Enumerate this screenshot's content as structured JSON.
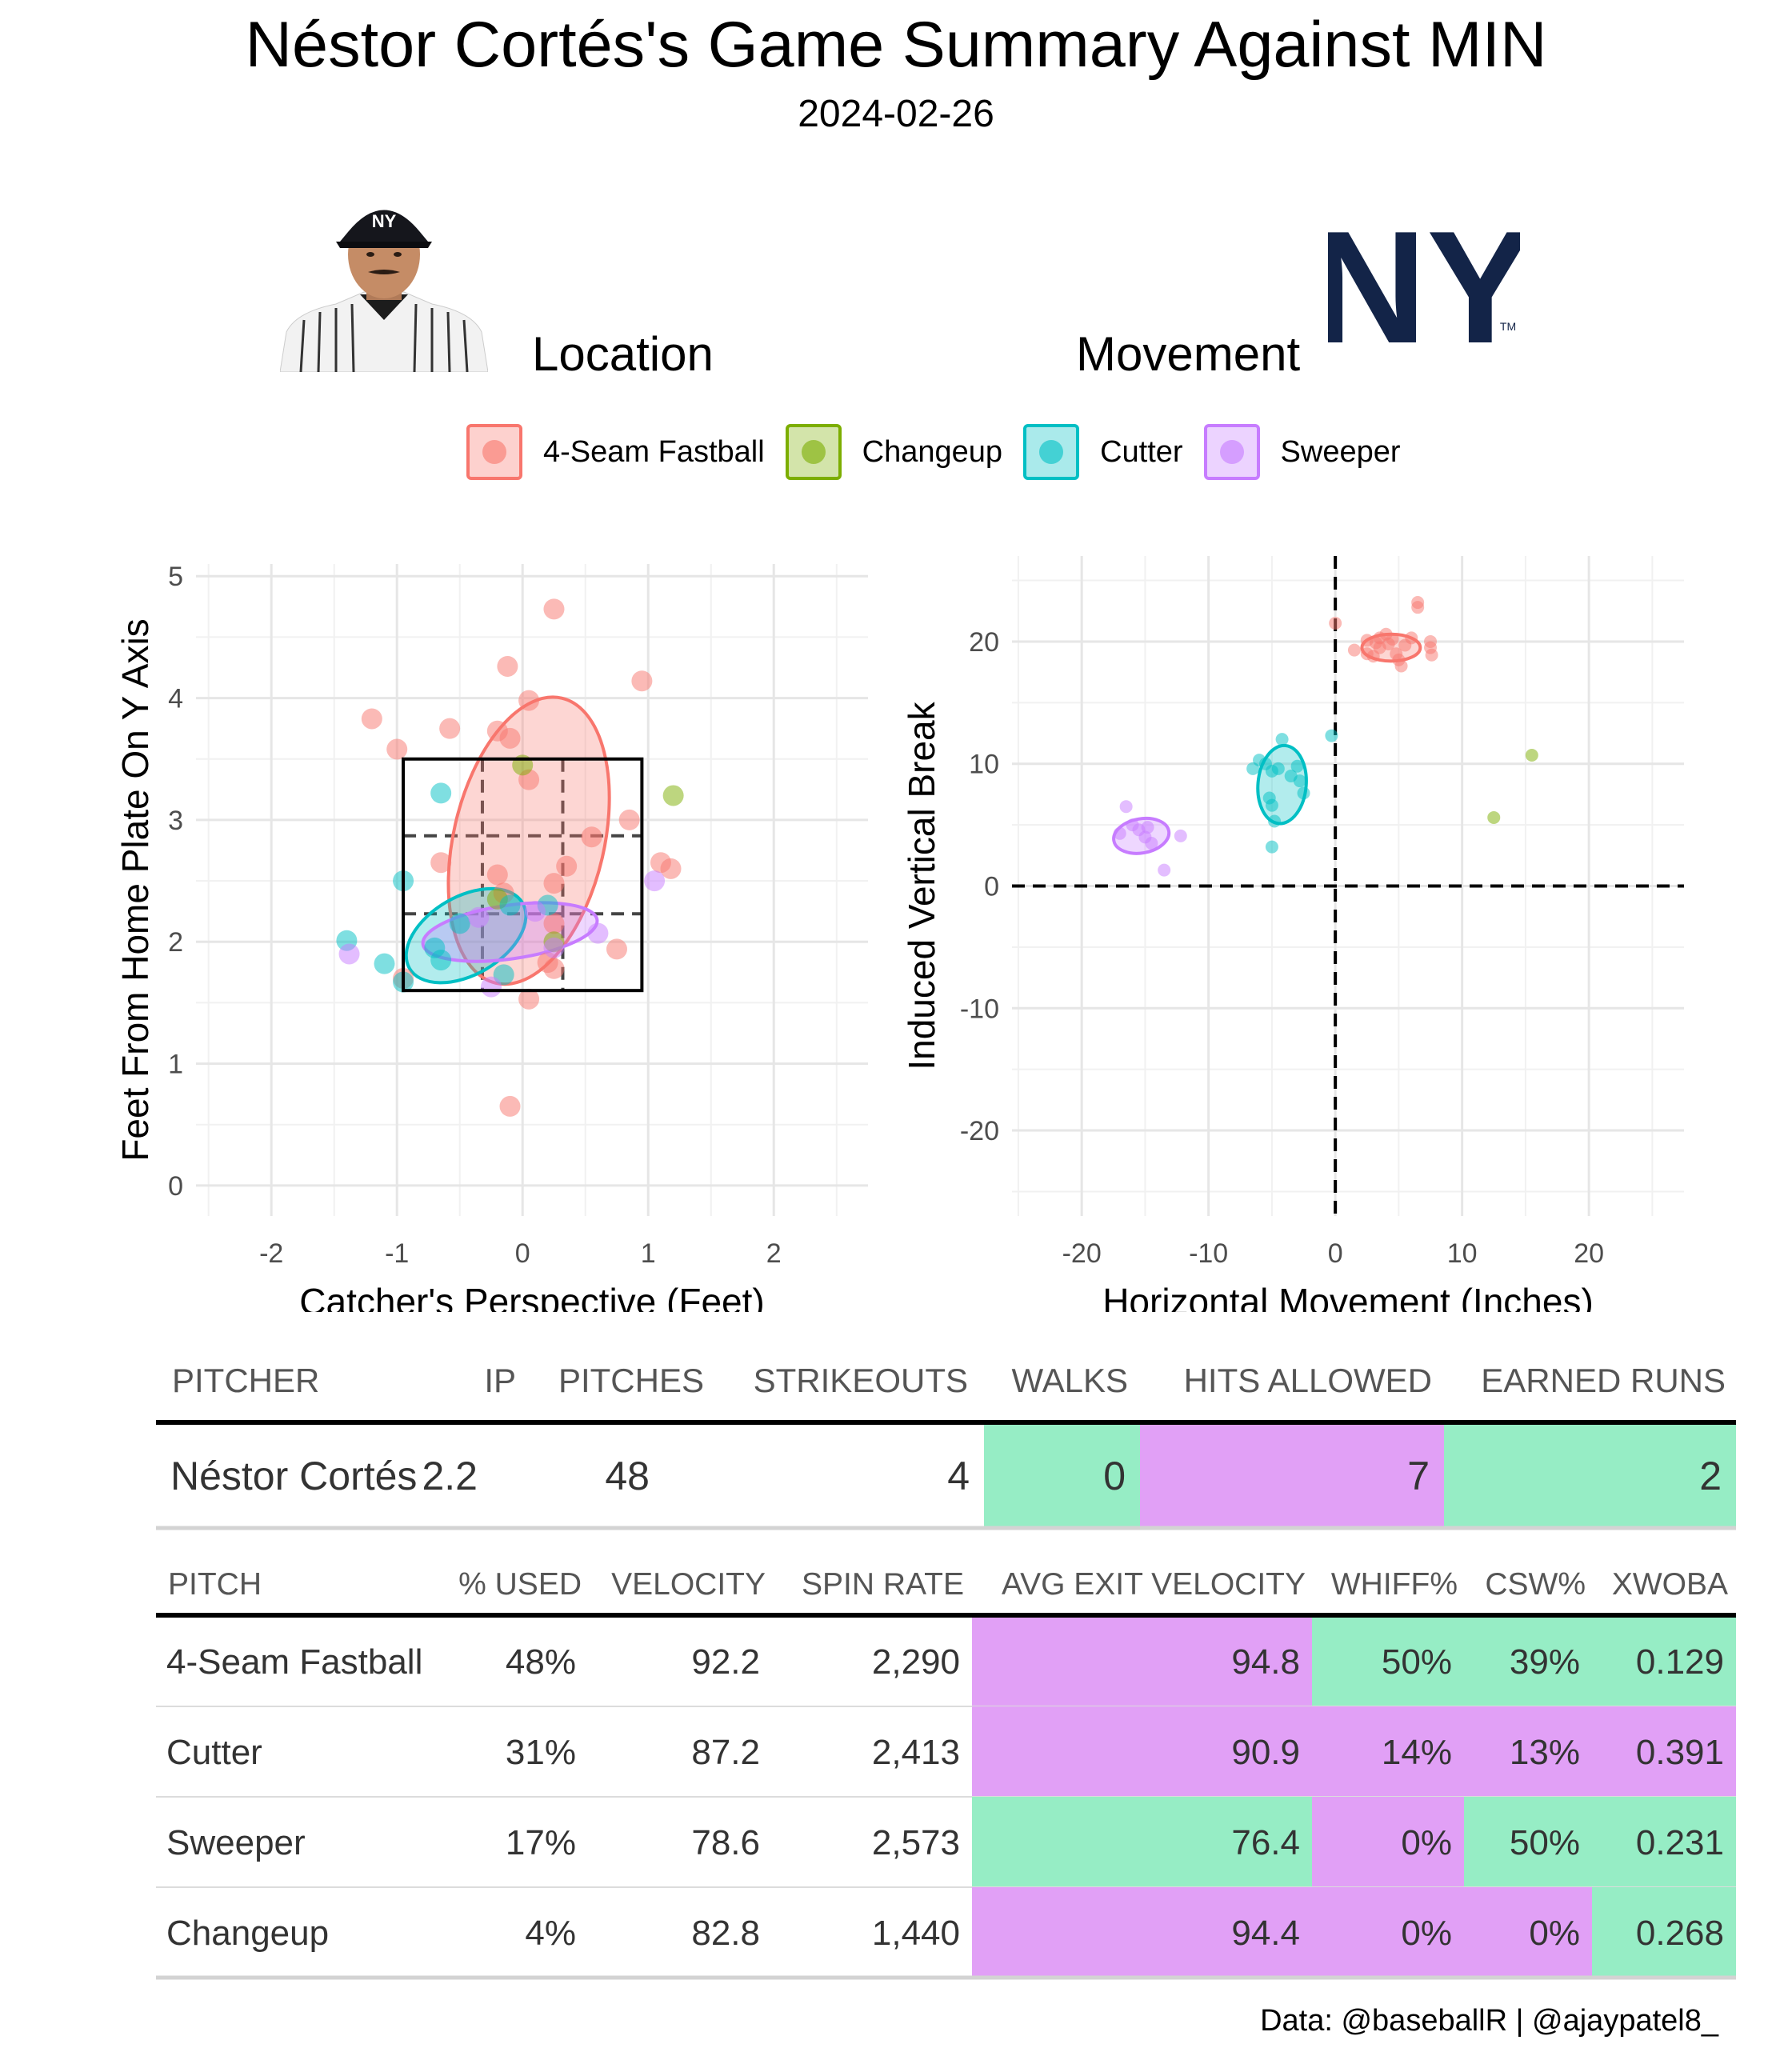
{
  "title": "Néstor Cortés's Game Summary Against MIN",
  "date": "2024-02-26",
  "panels": {
    "location": "Location",
    "movement": "Movement"
  },
  "legend": [
    {
      "label": "4-Seam Fastball",
      "color": "#F8766D"
    },
    {
      "label": "Changeup",
      "color": "#7CAE00"
    },
    {
      "label": "Cutter",
      "color": "#00BFC4"
    },
    {
      "label": "Sweeper",
      "color": "#C77CFF"
    }
  ],
  "images": {
    "player": "player-headshot-icon",
    "team": "yankees-ny-logo",
    "team_logo_text": "NY",
    "trademark": "TM"
  },
  "chart_data": [
    {
      "type": "scatter",
      "name": "location",
      "xlabel": "Catcher's Perspective (Feet)",
      "ylabel": "Feet From Home Plate On Y Axis",
      "xlim": [
        -2.6,
        2.75
      ],
      "ylim": [
        -0.25,
        5.1
      ],
      "x_ticks": [
        -2,
        -1,
        0,
        1,
        2
      ],
      "y_ticks": [
        0,
        1,
        2,
        3,
        4,
        5
      ],
      "grid": true,
      "strike_zone": {
        "x": [
          -0.95,
          0.95
        ],
        "y": [
          1.6,
          3.5
        ],
        "x_inner": [
          -0.32,
          0.32
        ],
        "y_inner": [
          2.23,
          2.87
        ]
      },
      "series": [
        {
          "name": "4-Seam Fastball",
          "color": "#F8766D",
          "points": [
            [
              0.25,
              4.73
            ],
            [
              -0.12,
              4.26
            ],
            [
              0.05,
              3.98
            ],
            [
              0.95,
              4.14
            ],
            [
              -1.2,
              3.83
            ],
            [
              -0.58,
              3.75
            ],
            [
              -0.1,
              3.67
            ],
            [
              -0.2,
              3.73
            ],
            [
              -1.0,
              3.58
            ],
            [
              0.05,
              3.33
            ],
            [
              0.85,
              3.0
            ],
            [
              0.55,
              2.86
            ],
            [
              0.35,
              2.62
            ],
            [
              1.1,
              2.65
            ],
            [
              1.18,
              2.6
            ],
            [
              -0.65,
              2.65
            ],
            [
              -0.2,
              2.55
            ],
            [
              0.25,
              2.48
            ],
            [
              -0.15,
              2.4
            ],
            [
              0.25,
              2.15
            ],
            [
              0.2,
              1.83
            ],
            [
              0.75,
              1.94
            ],
            [
              0.25,
              1.78
            ],
            [
              0.05,
              1.53
            ],
            [
              -0.95,
              1.7
            ],
            [
              -0.1,
              0.65
            ]
          ],
          "ellipse": {
            "cx": 0.05,
            "cy": 2.83,
            "rx": 0.6,
            "ry": 1.2,
            "angle": 13
          }
        },
        {
          "name": "Changeup",
          "color": "#7CAE00",
          "points": [
            [
              1.2,
              3.2
            ],
            [
              0.25,
              2.0
            ],
            [
              -0.2,
              2.35
            ],
            [
              0.0,
              3.45
            ]
          ]
        },
        {
          "name": "Cutter",
          "color": "#00BFC4",
          "points": [
            [
              -0.65,
              3.22
            ],
            [
              -0.95,
              2.5
            ],
            [
              -1.4,
              2.01
            ],
            [
              -1.1,
              1.82
            ],
            [
              -0.95,
              1.67
            ],
            [
              -0.65,
              1.85
            ],
            [
              -0.7,
              1.95
            ],
            [
              -0.5,
              2.15
            ],
            [
              -0.15,
              1.73
            ],
            [
              -0.1,
              2.3
            ],
            [
              0.2,
              2.3
            ]
          ],
          "ellipse": {
            "cx": -0.45,
            "cy": 2.05,
            "rx": 0.52,
            "ry": 0.32,
            "angle": -30
          }
        },
        {
          "name": "Sweeper",
          "color": "#C77CFF",
          "points": [
            [
              -1.38,
              1.9
            ],
            [
              -0.25,
              1.63
            ],
            [
              0.25,
              1.95
            ],
            [
              0.6,
              2.07
            ],
            [
              1.05,
              2.5
            ],
            [
              -0.35,
              2.2
            ],
            [
              0.1,
              2.25
            ]
          ],
          "ellipse": {
            "cx": -0.1,
            "cy": 2.08,
            "rx": 0.7,
            "ry": 0.22,
            "angle": -8
          }
        }
      ]
    },
    {
      "type": "scatter",
      "name": "movement",
      "xlabel": "Horizontal Movement (Inches)",
      "ylabel": "Induced Vertical Break",
      "xlim": [
        -25.5,
        27.5
      ],
      "ylim": [
        -27,
        27
      ],
      "x_ticks": [
        -20,
        -10,
        0,
        10,
        20
      ],
      "y_ticks": [
        -20,
        -10,
        0,
        10,
        20
      ],
      "grid": true,
      "reference_lines": {
        "x": 0,
        "y": 0
      },
      "series": [
        {
          "name": "4-Seam Fastball",
          "color": "#F8766D",
          "points": [
            [
              0.0,
              21.5
            ],
            [
              6.5,
              23.2
            ],
            [
              6.5,
              22.8
            ],
            [
              1.5,
              19.3
            ],
            [
              2.5,
              20.1
            ],
            [
              2.5,
              19.0
            ],
            [
              3.0,
              18.8
            ],
            [
              3.5,
              20.3
            ],
            [
              3.5,
              19.5
            ],
            [
              4.0,
              20.6
            ],
            [
              4.2,
              19.8
            ],
            [
              4.8,
              19.0
            ],
            [
              5.0,
              18.5
            ],
            [
              5.2,
              18.0
            ],
            [
              5.5,
              19.7
            ],
            [
              6.0,
              20.3
            ],
            [
              7.5,
              20.0
            ],
            [
              7.5,
              19.5
            ],
            [
              7.6,
              18.9
            ],
            [
              4.5,
              20.2
            ],
            [
              3.2,
              19.9
            ]
          ],
          "ellipse": {
            "cx": 4.4,
            "cy": 19.5,
            "rx": 2.3,
            "ry": 1.1,
            "angle": 0
          }
        },
        {
          "name": "Changeup",
          "color": "#7CAE00",
          "points": [
            [
              15.5,
              10.7
            ],
            [
              12.5,
              5.6
            ]
          ]
        },
        {
          "name": "Cutter",
          "color": "#00BFC4",
          "points": [
            [
              -0.3,
              12.3
            ],
            [
              -4.2,
              12.0
            ],
            [
              -6.5,
              9.6
            ],
            [
              -6.0,
              10.3
            ],
            [
              -5.5,
              10.0
            ],
            [
              -5.0,
              9.4
            ],
            [
              -4.5,
              9.6
            ],
            [
              -3.0,
              9.8
            ],
            [
              -2.8,
              8.6
            ],
            [
              -2.5,
              7.6
            ],
            [
              -5.2,
              7.2
            ],
            [
              -5.0,
              6.6
            ],
            [
              -4.8,
              5.3
            ],
            [
              -5.0,
              3.2
            ],
            [
              -3.5,
              9.0
            ]
          ],
          "ellipse": {
            "cx": -4.2,
            "cy": 8.3,
            "rx": 1.9,
            "ry": 3.2,
            "angle": 5
          }
        },
        {
          "name": "Sweeper",
          "color": "#C77CFF",
          "points": [
            [
              -16.5,
              6.5
            ],
            [
              -16.0,
              5.0
            ],
            [
              -17.0,
              4.3
            ],
            [
              -15.5,
              4.6
            ],
            [
              -15.0,
              4.0
            ],
            [
              -14.5,
              3.5
            ],
            [
              -13.5,
              1.3
            ],
            [
              -12.2,
              4.1
            ],
            [
              -14.8,
              4.8
            ]
          ],
          "ellipse": {
            "cx": -15.3,
            "cy": 4.1,
            "rx": 2.2,
            "ry": 1.4,
            "angle": -10
          }
        }
      ]
    }
  ],
  "summary_table": {
    "headers": [
      "PITCHER",
      "IP",
      "PITCHES",
      "STRIKEOUTS",
      "WALKS",
      "HITS ALLOWED",
      "EARNED RUNS"
    ],
    "row": [
      "Néstor Cortés",
      "2.2",
      "48",
      "4",
      "0",
      "7",
      "2"
    ],
    "cell_colors": [
      null,
      null,
      null,
      null,
      "#96EDC5",
      "#E1A0F6",
      "#96EDC5"
    ]
  },
  "pitch_table": {
    "headers": [
      "PITCH",
      "% USED",
      "VELOCITY",
      "SPIN RATE",
      "AVG EXIT VELOCITY",
      "WHIFF%",
      "CSW%",
      "XWOBA"
    ],
    "rows": [
      [
        "4-Seam Fastball",
        "48%",
        "92.2",
        "2,290",
        "94.8",
        "50%",
        "39%",
        "0.129"
      ],
      [
        "Cutter",
        "31%",
        "87.2",
        "2,413",
        "90.9",
        "14%",
        "13%",
        "0.391"
      ],
      [
        "Sweeper",
        "17%",
        "78.6",
        "2,573",
        "76.4",
        "0%",
        "50%",
        "0.231"
      ],
      [
        "Changeup",
        "4%",
        "82.8",
        "1,440",
        "94.4",
        "0%",
        "0%",
        "0.268"
      ]
    ],
    "cell_colors": [
      [
        null,
        null,
        null,
        null,
        "#E1A0F6",
        "#96EDC5",
        "#96EDC5",
        "#96EDC5"
      ],
      [
        null,
        null,
        null,
        null,
        "#E1A0F6",
        "#E1A0F6",
        "#E1A0F6",
        "#E1A0F6"
      ],
      [
        null,
        null,
        null,
        null,
        "#96EDC5",
        "#E1A0F6",
        "#96EDC5",
        "#96EDC5"
      ],
      [
        null,
        null,
        null,
        null,
        "#E1A0F6",
        "#E1A0F6",
        "#E1A0F6",
        "#96EDC5"
      ]
    ]
  },
  "credit": "Data: @baseballR | @ajaypatel8_"
}
